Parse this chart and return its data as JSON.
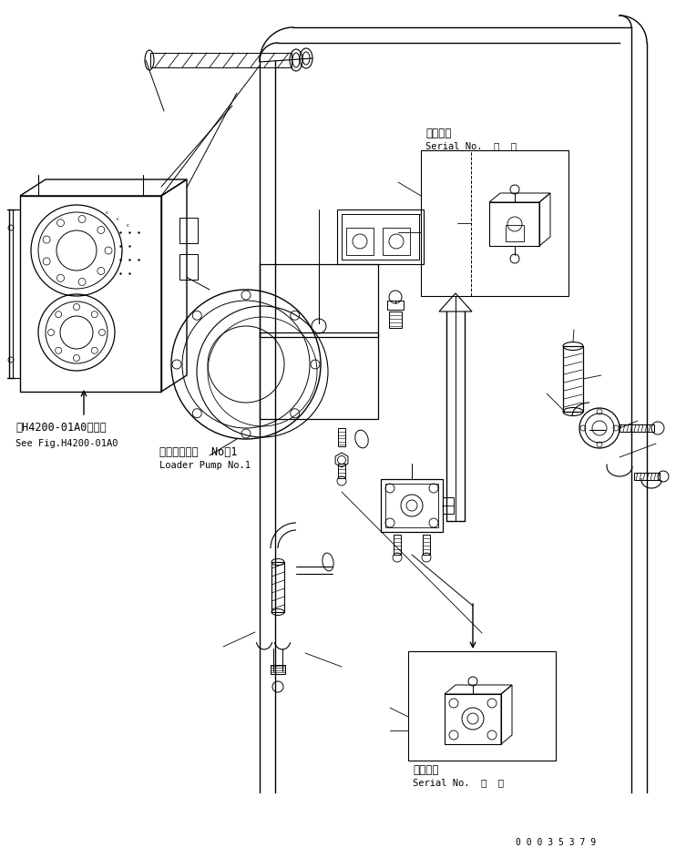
{
  "bg_color": "#ffffff",
  "line_color": "#000000",
  "fig_width": 7.42,
  "fig_height": 9.42,
  "dpi": 100,
  "label_top_right_jp": "適用号機",
  "label_top_right_en": "Serial No.  ・  ～",
  "label_bot_right_jp": "適用号機",
  "label_bot_right_en": "Serial No.  ・  ～",
  "label_pump_jp": "ローダポンプ  No．1",
  "label_pump_en": "Loader Pump No.1",
  "label_ref_jp": "第H4200-01A0図参照",
  "label_ref_en": "See Fig.H4200-01A0",
  "serial_number": "0 0 0 3 5 3 7 9",
  "font_size_jp": 8.5,
  "font_size_en": 7.5,
  "font_size_serial": 7,
  "font_family": "monospace"
}
